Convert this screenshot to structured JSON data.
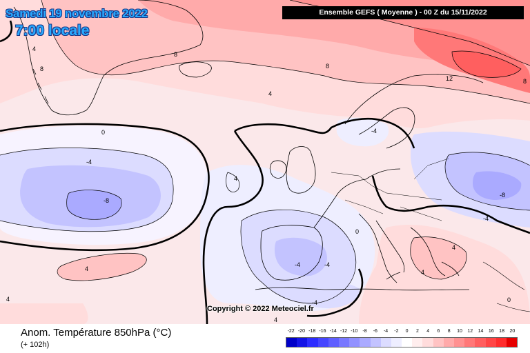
{
  "header": {
    "date_line": "Samedi 19 novembre 2022",
    "time_line": "7:00 locale",
    "run_info": "Ensemble GEFS  ( Moyenne )  -  00 Z du 15/11/2022"
  },
  "footer": {
    "variable_title": "Anom. Température 850hPa (°C)",
    "lead_time": "(+ 102h)",
    "copyright": "Copyright © 2022 Meteociel.fr"
  },
  "legend": {
    "ticks": [
      "-22",
      "-20",
      "-18",
      "-16",
      "-14",
      "-12",
      "-10",
      "-8",
      "-6",
      "-4",
      "-2",
      "0",
      "2",
      "4",
      "6",
      "8",
      "10",
      "12",
      "14",
      "16",
      "18",
      "20"
    ],
    "colors": [
      "#0000c8",
      "#1414e6",
      "#2d2dff",
      "#4646ff",
      "#5f5fff",
      "#7878ff",
      "#9191ff",
      "#aaaaff",
      "#c3c3ff",
      "#dcdcff",
      "#eeeeff",
      "#ffffff",
      "#ffeeee",
      "#ffdcdc",
      "#ffc3c3",
      "#ffaaaa",
      "#ff9191",
      "#ff7878",
      "#ff5f5f",
      "#ff4646",
      "#ff2d2d",
      "#e60000"
    ]
  },
  "contour_labels": [
    "-8",
    "-4",
    "0",
    "4",
    "8",
    "12"
  ],
  "colors": {
    "ocean_base": "#fbe8ea",
    "coast": "#000000",
    "contour": "#000000"
  }
}
